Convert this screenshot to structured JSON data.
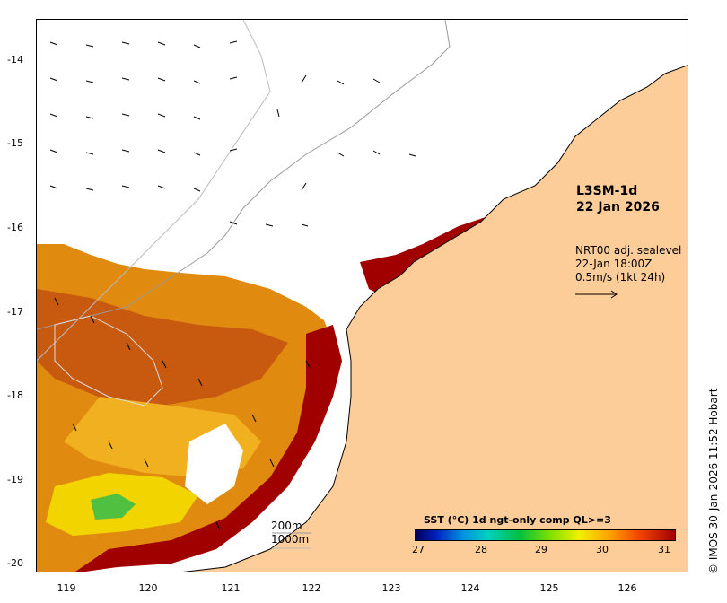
{
  "map": {
    "product": "L3SM-1d",
    "date": "22 Jan 2026",
    "current": {
      "source": "NRT00 adj. sealevel",
      "time": "22-Jan 18:00Z",
      "scale": "0.5m/s (1kt 24h)"
    },
    "contours": [
      "200m",
      "1000m"
    ],
    "colorbar": {
      "title": "SST (°C) 1d ngt-only comp QL>=3",
      "ticks": [
        "27",
        "28",
        "29",
        "30",
        "31"
      ],
      "colors": {
        "min": "#00005a",
        "mid": "#00c040",
        "high": "#f0f000",
        "max": "#a00000"
      }
    },
    "lat_ticks": [
      "-14",
      "-15",
      "-16",
      "-17",
      "-18",
      "-19",
      "-20"
    ],
    "lon_ticks": [
      "119",
      "120",
      "121",
      "122",
      "123",
      "124",
      "125",
      "126"
    ],
    "credit": "© IMOS 30-Jan-2026 11:52 Hobart",
    "colors": {
      "land": "#fccc99",
      "sst_hot": "#a00000",
      "cloud": "#ffffff"
    }
  }
}
